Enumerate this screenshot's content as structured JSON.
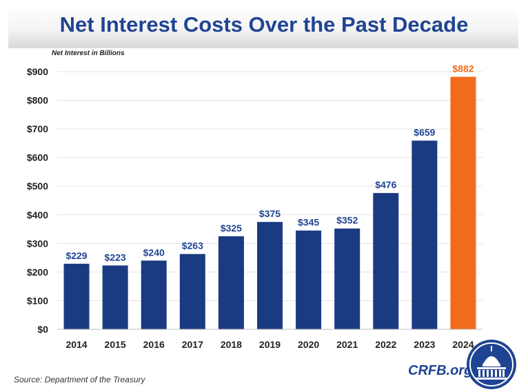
{
  "header": {
    "title": "Net Interest Costs Over the Past Decade"
  },
  "footer": {
    "source": "Source: Department of the Treasury",
    "brand": "CRFB.org"
  },
  "colors": {
    "bar": "#1a3a82",
    "highlight": "#f26b1d",
    "label": "#1f4493",
    "title": "#1f4493"
  },
  "chart_data": {
    "type": "bar",
    "title": "Net Interest Costs Over the Past Decade",
    "ylabel": "Net Interest in Billions",
    "xlabel": "",
    "categories": [
      "2014",
      "2015",
      "2016",
      "2017",
      "2018",
      "2019",
      "2020",
      "2021",
      "2022",
      "2023",
      "2024"
    ],
    "values": [
      229,
      223,
      240,
      263,
      325,
      375,
      345,
      352,
      476,
      659,
      882
    ],
    "data_labels": [
      "$229",
      "$223",
      "$240",
      "$263",
      "$325",
      "$375",
      "$345",
      "$352",
      "$476",
      "$659",
      "$882"
    ],
    "highlight_index": 10,
    "ylim": [
      0,
      900
    ],
    "yticks": [
      0,
      100,
      200,
      300,
      400,
      500,
      600,
      700,
      800,
      900
    ],
    "ytick_labels": [
      "$0",
      "$100",
      "$200",
      "$300",
      "$400",
      "$500",
      "$600",
      "$700",
      "$800",
      "$900"
    ],
    "grid": true,
    "legend": "none"
  }
}
